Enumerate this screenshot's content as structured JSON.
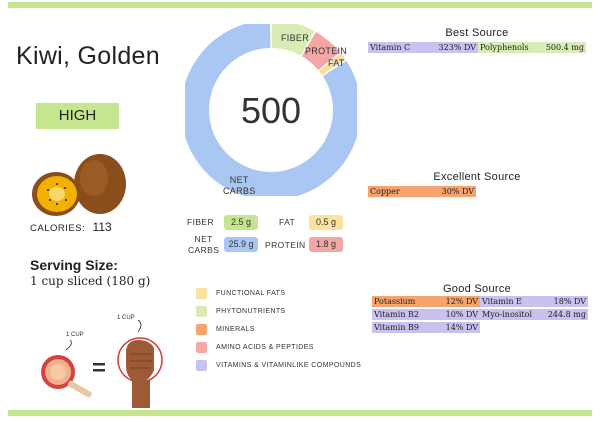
{
  "title": "Kiwi, Golden",
  "level": "HIGH",
  "calories": {
    "label": "CALORIES:",
    "value": "113"
  },
  "serving": {
    "title": "Serving Size:",
    "value": "1 cup sliced  (180 g)"
  },
  "cup_labels": {
    "cup": "1 CUP",
    "fist": "1 CUP"
  },
  "score": "500",
  "donut": {
    "segments": [
      {
        "label": "FIBER",
        "value": 2.5,
        "color": "#d9ecb6"
      },
      {
        "label": "PROTEIN",
        "value": 1.8,
        "color": "#f3a6a6"
      },
      {
        "label": "FAT",
        "value": 0.5,
        "color": "#f8dd9e"
      },
      {
        "label": "NET CARBS",
        "value": 25.9,
        "color": "#a9c7f2"
      }
    ],
    "net_carbs_label": [
      "NET",
      "CARBS"
    ]
  },
  "macros": {
    "fiber": {
      "label": "FIBER",
      "value": "2.5 g",
      "color": "#c6e58f"
    },
    "fat": {
      "label": "FAT",
      "value": "0.5 g",
      "color": "#fbe39d"
    },
    "net_carbs": {
      "label1": "NET",
      "label2": "CARBS",
      "value": "25.9 g",
      "color": "#a9c7f2"
    },
    "protein": {
      "label": "PROTEIN",
      "value": "1.8 g",
      "color": "#f3a6a6"
    }
  },
  "legend": [
    {
      "label": "FUNCTIONAL FATS",
      "color": "#fbe39d"
    },
    {
      "label": "PHYTONUTRIENTS",
      "color": "#d9ecb6"
    },
    {
      "label": "MINERALS",
      "color": "#f7a36d"
    },
    {
      "label": "AMINO ACIDS & PEPTIDES",
      "color": "#f5a8a8"
    },
    {
      "label": "VITAMINS & VITAMINLIKE COMPOUNDS",
      "color": "#c9c2f0"
    }
  ],
  "best_source": {
    "heading": "Best Source",
    "items": [
      {
        "name": "Vitamin C",
        "value": "323% DV",
        "color": "#c9c2f0"
      },
      {
        "name": "Polyphenols",
        "value": "500.4 mg",
        "color": "#d9ecb6"
      }
    ]
  },
  "excellent_source": {
    "heading": "Excellent Source",
    "items": [
      {
        "name": "Copper",
        "value": "30% DV",
        "color": "#f7a36d"
      }
    ]
  },
  "good_source": {
    "heading": "Good Source",
    "items": [
      {
        "name": "Potassium",
        "value": "12% DV",
        "color": "#f7a36d"
      },
      {
        "name": "Vitamin E",
        "value": "18% DV",
        "color": "#c9c2f0"
      },
      {
        "name": "Vitamin B2",
        "value": "10% DV",
        "color": "#c9c2f0"
      },
      {
        "name": "Myo-inositol",
        "value": "244.8 mg",
        "color": "#c9c2f0"
      },
      {
        "name": "Vitamin B9",
        "value": "14% DV",
        "color": "#c9c2f0"
      }
    ]
  }
}
